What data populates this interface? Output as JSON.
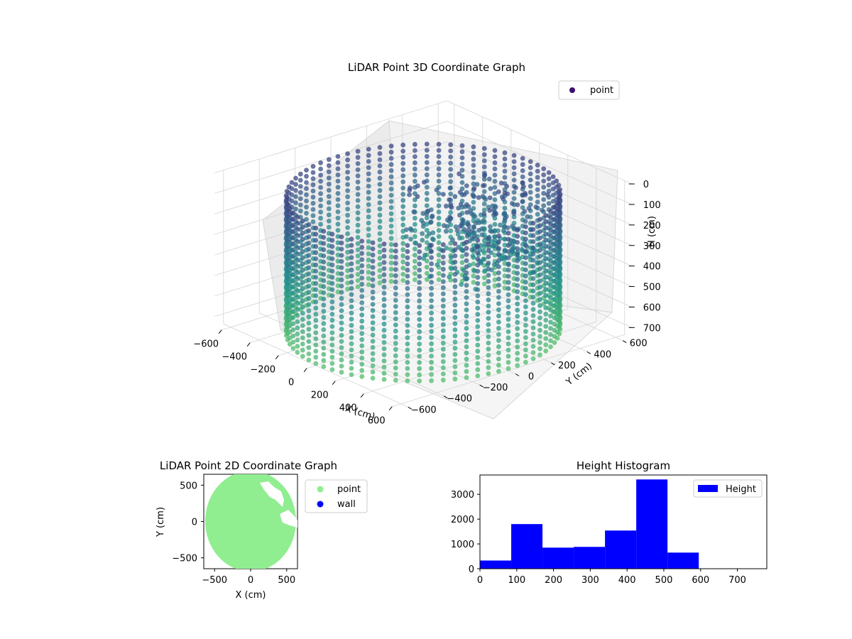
{
  "chart_data": [
    {
      "type": "scatter",
      "projection": "3d",
      "title": "LiDAR Point 3D Coordinate Graph",
      "xlabel": "X (cm)",
      "ylabel": "Y (cm)",
      "zlabel": "H (cm)",
      "x_ticks": [
        "−600",
        "−400",
        "−200",
        "0",
        "200",
        "400",
        "600"
      ],
      "y_ticks": [
        "−600",
        "−400",
        "−200",
        "0",
        "200",
        "400",
        "600"
      ],
      "z_ticks": [
        "0",
        "100",
        "200",
        "300",
        "400",
        "500",
        "600",
        "700"
      ],
      "xlim": [
        -650,
        650
      ],
      "ylim": [
        -650,
        650
      ],
      "zlim": [
        750,
        0
      ],
      "z_inverted": true,
      "colormap": "viridis",
      "legend": [
        {
          "label": "point",
          "color": "#3b0f70"
        }
      ],
      "legend_position": "upper-right",
      "grid": true,
      "description_shape": "cylindrical wall of points, radius ~600, height 0-700"
    },
    {
      "type": "scatter",
      "title": "LiDAR Point 2D Coordinate Graph",
      "xlabel": "X (cm)",
      "ylabel": "Y (cm)",
      "x_ticks": [
        "−500",
        "0",
        "500"
      ],
      "y_ticks": [
        "500",
        "0",
        "−500"
      ],
      "xlim": [
        -650,
        650
      ],
      "ylim": [
        -650,
        650
      ],
      "legend": [
        {
          "label": "point",
          "color": "#90ee90"
        },
        {
          "label": "wall",
          "color": "#0000ff"
        }
      ],
      "legend_position": "outside-right",
      "grid": false
    },
    {
      "type": "bar",
      "subtype": "histogram",
      "title": "Height Histogram",
      "xlabel": "",
      "ylabel": "",
      "bin_edges": [
        0,
        85,
        170,
        255,
        340,
        425,
        510,
        595,
        680,
        765
      ],
      "values": [
        330,
        1800,
        850,
        880,
        1540,
        3600,
        650,
        0,
        0
      ],
      "x_ticks": [
        "0",
        "100",
        "200",
        "300",
        "400",
        "500",
        "600",
        "700"
      ],
      "y_ticks": [
        "0",
        "1000",
        "2000",
        "3000"
      ],
      "xlim": [
        0,
        780
      ],
      "ylim": [
        0,
        3780
      ],
      "color": "#0000ff",
      "legend": [
        {
          "label": "Height",
          "color": "#0000ff"
        }
      ],
      "legend_position": "upper-right",
      "grid": false
    }
  ]
}
